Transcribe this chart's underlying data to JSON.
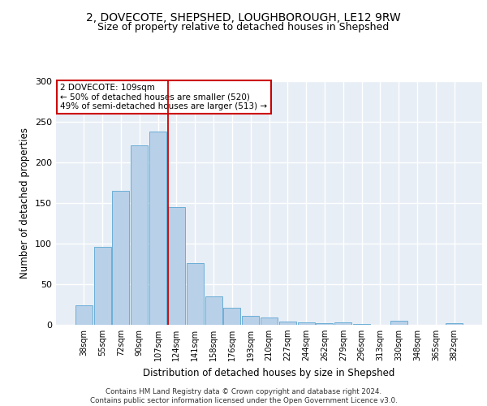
{
  "title1": "2, DOVECOTE, SHEPSHED, LOUGHBOROUGH, LE12 9RW",
  "title2": "Size of property relative to detached houses in Shepshed",
  "xlabel": "Distribution of detached houses by size in Shepshed",
  "ylabel": "Number of detached properties",
  "categories": [
    "38sqm",
    "55sqm",
    "72sqm",
    "90sqm",
    "107sqm",
    "124sqm",
    "141sqm",
    "158sqm",
    "176sqm",
    "193sqm",
    "210sqm",
    "227sqm",
    "244sqm",
    "262sqm",
    "279sqm",
    "296sqm",
    "313sqm",
    "330sqm",
    "348sqm",
    "365sqm",
    "382sqm"
  ],
  "values": [
    24,
    96,
    165,
    221,
    238,
    145,
    76,
    35,
    21,
    11,
    9,
    4,
    3,
    2,
    3,
    1,
    0,
    5,
    0,
    0,
    2
  ],
  "bar_color": "#b8d0e8",
  "bar_edge_color": "#6baed6",
  "vline_x": 4.55,
  "vline_color": "#cc0000",
  "annotation_text": "2 DOVECOTE: 109sqm\n← 50% of detached houses are smaller (520)\n49% of semi-detached houses are larger (513) →",
  "annotation_box_color": "#ffffff",
  "annotation_box_edge": "#cc0000",
  "ylim": [
    0,
    300
  ],
  "yticks": [
    0,
    50,
    100,
    150,
    200,
    250,
    300
  ],
  "footer": "Contains HM Land Registry data © Crown copyright and database right 2024.\nContains public sector information licensed under the Open Government Licence v3.0.",
  "bg_color": "#e8eef6",
  "grid_color": "#ffffff",
  "title_fontsize": 10,
  "subtitle_fontsize": 9,
  "tick_fontsize": 7,
  "label_fontsize": 8.5,
  "annotation_fontsize": 7.5
}
